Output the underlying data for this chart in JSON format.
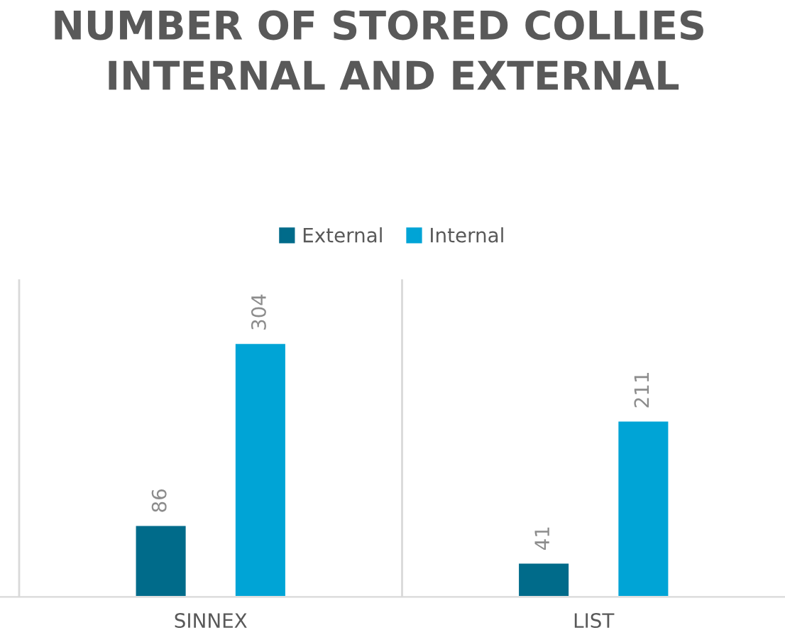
{
  "chart_data": {
    "type": "bar",
    "title": "NUMBER OF STORED COLLIES   INTERNAL AND EXTERNAL",
    "categories": [
      "SINNEX",
      "LIST"
    ],
    "series": [
      {
        "name": "External",
        "color": "#006b8a",
        "values": [
          86,
          41
        ]
      },
      {
        "name": "Internal",
        "color": "#00a4d6",
        "values": [
          304,
          211
        ]
      }
    ],
    "data_labels": true,
    "legend": "top",
    "tick_labels": "x",
    "grid": false
  }
}
